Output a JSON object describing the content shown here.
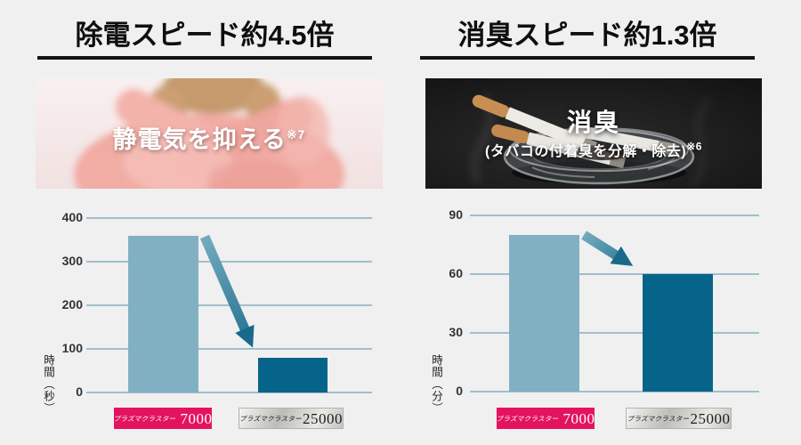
{
  "colors": {
    "background": "#f0f0f0",
    "title_text": "#0e0e0e",
    "underline": "#141414",
    "grid_line": "#a0bfcb",
    "tick_text": "#333333",
    "bar_light_blue": "#82b0c3",
    "bar_dark_teal": "#06648a",
    "arrow_teal": "#1d6d8e",
    "badge_pink": "#e4135f",
    "badge_silver_text": "#1d1d1d"
  },
  "panels": [
    {
      "title": "除電スピード約4.5倍",
      "photo": {
        "caption": "静電気を抑える",
        "caption_note": "※7"
      },
      "badges": [
        {
          "brand": "プラズマクラスター",
          "model": "7000"
        },
        {
          "brand": "プラズマクラスター",
          "model": "25000"
        }
      ]
    },
    {
      "title": "消臭スピード約1.3倍",
      "photo": {
        "caption": "消臭",
        "caption_sub": "(タバコの付着臭を分解・除去)",
        "caption_note": "※6"
      },
      "badges": [
        {
          "brand": "プラズマクラスター",
          "model": "7000"
        },
        {
          "brand": "プラズマクラスター",
          "model": "25000"
        }
      ]
    }
  ],
  "chart_data": [
    {
      "type": "bar",
      "title": "除電スピード約4.5倍",
      "categories": [
        "プラズマクラスター7000",
        "プラズマクラスター25000"
      ],
      "values": [
        360,
        80
      ],
      "unit": "秒",
      "xlabel": "",
      "ylabel": "時間（秒）",
      "yticks": [
        0,
        100,
        200,
        300,
        400
      ],
      "ylim": [
        0,
        400
      ],
      "grid": true,
      "legend": "none",
      "bar_colors": [
        "#82b0c3",
        "#06648a"
      ],
      "annotation": "arrow-decrease-from-bar1-to-bar2"
    },
    {
      "type": "bar",
      "title": "消臭スピード約1.3倍",
      "categories": [
        "プラズマクラスター7000",
        "プラズマクラスター25000"
      ],
      "values": [
        80,
        60
      ],
      "unit": "分",
      "xlabel": "",
      "ylabel": "時間（分）",
      "yticks": [
        0,
        30,
        60,
        90
      ],
      "ylim": [
        0,
        90
      ],
      "grid": true,
      "legend": "none",
      "bar_colors": [
        "#82b0c3",
        "#06648a"
      ],
      "annotation": "arrow-decrease-from-bar1-to-bar2"
    }
  ]
}
